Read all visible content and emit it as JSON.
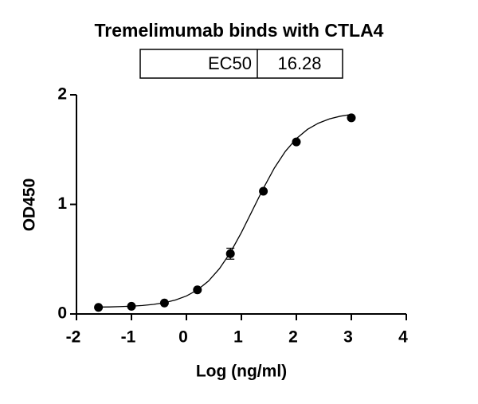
{
  "chart_data": {
    "type": "scatter",
    "title": "Tremelimumab binds with CTLA4",
    "ec50_table": {
      "label": "EC50",
      "value": 16.28
    },
    "x_label": "Log (ng/ml)",
    "y_label": "OD450",
    "x": [
      -1.6,
      -1.0,
      -0.4,
      0.2,
      0.8,
      1.4,
      2.0,
      3.0
    ],
    "series": [
      {
        "color": "#000000",
        "values": [
          0.06,
          0.07,
          0.1,
          0.22,
          0.55,
          1.12,
          1.57,
          1.79
        ],
        "errors": [
          null,
          null,
          null,
          null,
          0.05,
          null,
          null,
          null
        ]
      }
    ],
    "fit": {
      "color": "#000000",
      "x": [
        -1.6,
        -1.4,
        -1.2,
        -1.0,
        -0.8,
        -0.6,
        -0.4,
        -0.2,
        0.0,
        0.2,
        0.4,
        0.6,
        0.8,
        1.0,
        1.2,
        1.4,
        1.6,
        1.8,
        2.0,
        2.2,
        2.4,
        2.6,
        2.8,
        3.0
      ],
      "values": [
        0.063,
        0.064,
        0.067,
        0.071,
        0.077,
        0.087,
        0.103,
        0.127,
        0.164,
        0.219,
        0.3,
        0.413,
        0.561,
        0.743,
        0.945,
        1.147,
        1.332,
        1.484,
        1.6,
        1.684,
        1.741,
        1.78,
        1.805,
        1.821
      ]
    },
    "xlim": [
      -2,
      4
    ],
    "xticks": [
      -2,
      -1,
      0,
      1,
      2,
      3,
      4
    ],
    "ylim": [
      0,
      2
    ],
    "yticks": [
      0,
      1,
      2
    ]
  }
}
